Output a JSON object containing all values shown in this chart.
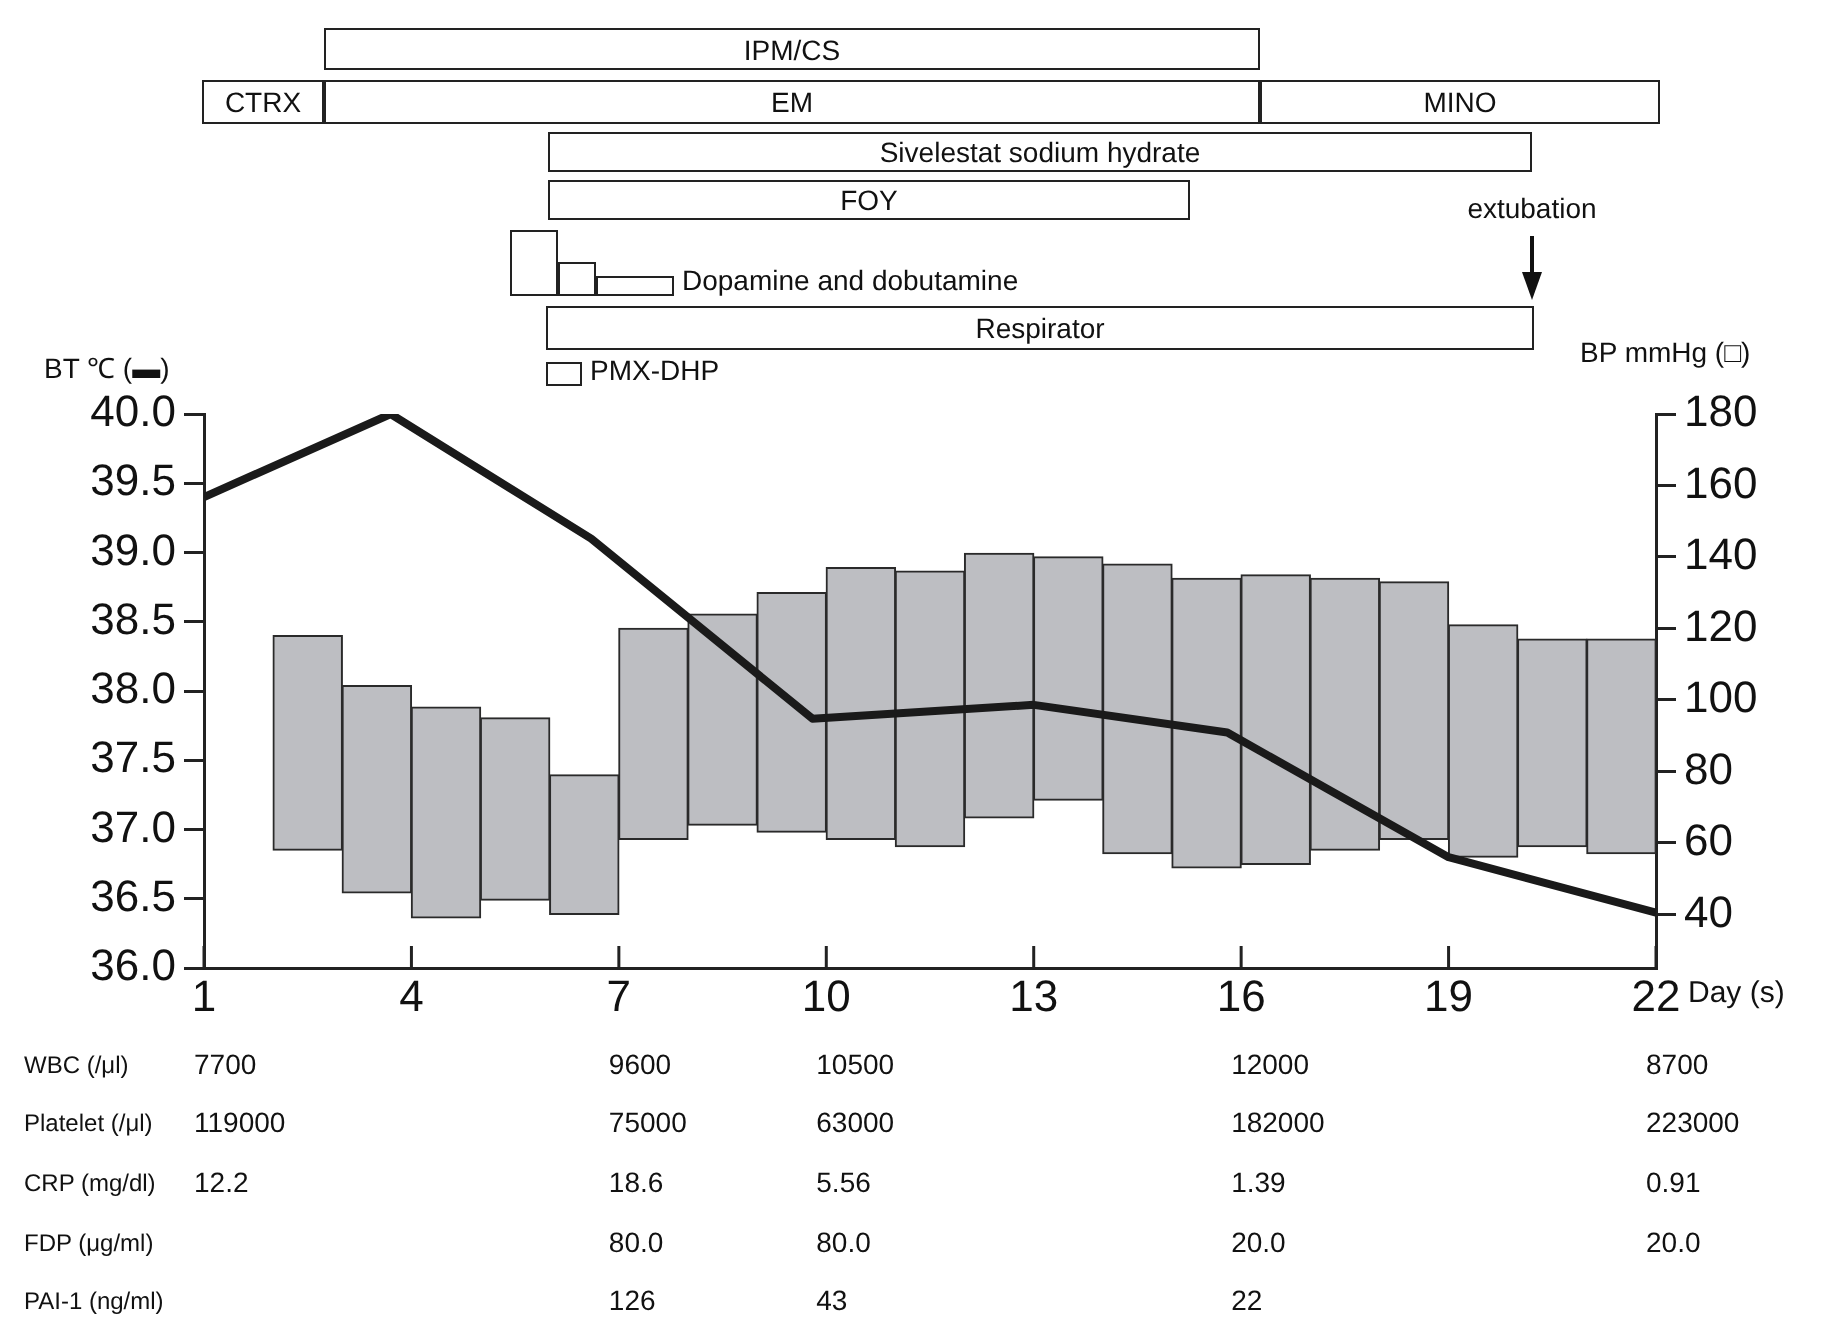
{
  "chart_data": [
    {
      "type": "other",
      "annotations": [
        "IPM/CS",
        "CTRX",
        "EM",
        "MINO",
        "Sivelestat sodium hydrate",
        "FOY",
        "Dopamine and dobutamine",
        "Respirator",
        "PMX-DHP",
        "extubation"
      ]
    },
    {
      "type": "bar",
      "xlabel": "Day (s)",
      "ylabel": "BT ℃ (▬)",
      "y2label": "BP mmHg (□)",
      "xlim": [
        1,
        22
      ],
      "xticks": [
        1,
        4,
        7,
        10,
        13,
        16,
        19,
        22
      ],
      "ylim": [
        36,
        40
      ],
      "yticks": [
        {
          "value": 36,
          "label": "36.0"
        },
        {
          "value": 36.5,
          "label": "36.5"
        },
        {
          "value": 37,
          "label": "37.0"
        },
        {
          "value": 37.5,
          "label": "37.5"
        },
        {
          "value": 38,
          "label": "38.0"
        },
        {
          "value": 38.5,
          "label": "38.5"
        },
        {
          "value": 39,
          "label": "39.0"
        },
        {
          "value": 39.5,
          "label": "39.5"
        },
        {
          "value": 40,
          "label": "40.0"
        }
      ],
      "y2lim": [
        25,
        180
      ],
      "y2ticks": [
        40,
        60,
        80,
        100,
        120,
        140,
        160,
        180
      ],
      "series": [
        {
          "axis": "y2",
          "color": "#bdbec2",
          "x": [
            2.5,
            3.5,
            4.5,
            5.5,
            6.5,
            7.5,
            8.5,
            9.5,
            10.5,
            11.5,
            12.5,
            13.5,
            14.5,
            15.5,
            16.5,
            17.5,
            18.5,
            19.5,
            20.5,
            21.5
          ],
          "base": [
            58,
            46,
            39,
            44,
            40,
            61,
            65,
            63,
            61,
            59,
            67,
            72,
            57,
            53,
            54,
            58,
            61,
            56,
            59,
            57
          ],
          "values": [
            60,
            58,
            59,
            51,
            39,
            59,
            59,
            67,
            76,
            77,
            74,
            68,
            81,
            81,
            81,
            76,
            72,
            65,
            58,
            60
          ]
        },
        {
          "type": "line",
          "axis": "y",
          "color": "#1a1a1a",
          "x": [
            1,
            3.7,
            6.6,
            9.8,
            13,
            15.8,
            19,
            22
          ],
          "values": [
            39.4,
            40.0,
            39.1,
            37.8,
            37.9,
            37.7,
            36.8,
            36.4
          ]
        }
      ],
      "annotations": [
        "WBC (/μl)",
        "7700",
        "9600",
        "10500",
        "12000",
        "8700",
        "Platelet (/μl)",
        "119000",
        "75000",
        "63000",
        "182000",
        "223000",
        "CRP (mg/dl)",
        "12.2",
        "18.6",
        "5.56",
        "1.39",
        "0.91",
        "FDP (μg/ml)",
        "80.0",
        "80.0",
        "20.0",
        "20.0",
        "PAI-1 (ng/ml)",
        "126",
        "43",
        "22"
      ]
    }
  ]
}
